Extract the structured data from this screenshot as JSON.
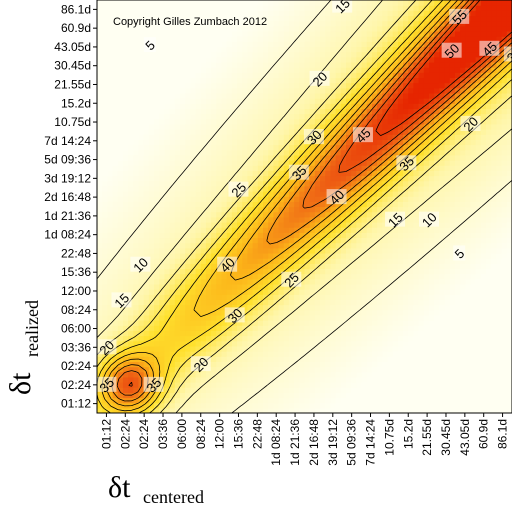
{
  "chart_data": {
    "type": "heatmap",
    "title": "",
    "copyright": "Copyright Gilles Zumbach 2012",
    "xlabel": {
      "symbol": "δt",
      "subscript": "centered"
    },
    "ylabel": {
      "symbol": "δt",
      "subscript": "realized"
    },
    "x_ticks": [
      "01:12",
      "02:24",
      "02:24",
      "03:36",
      "06:00",
      "08:24",
      "12:00",
      "15:36",
      "22:48",
      "1d 08:24",
      "1d 21:36",
      "2d 16:48",
      "3d 19:12",
      "5d 09:36",
      "7d 14:24",
      "10.75d",
      "15.2d",
      "21.55d",
      "30.45d",
      "43.05d",
      "60.9d",
      "86.1d"
    ],
    "y_ticks": [
      "01:12",
      "02:24",
      "02:24",
      "03:36",
      "06:00",
      "08:24",
      "12:00",
      "15:36",
      "22:48",
      "1d 08:24",
      "1d 21:36",
      "2d 16:48",
      "3d 19:12",
      "5d 09:36",
      "7d 14:24",
      "10.75d",
      "15.2d",
      "21.55d",
      "30.45d",
      "43.05d",
      "60.9d",
      "86.1d"
    ],
    "contour_levels": [
      5,
      10,
      15,
      20,
      25,
      30,
      35,
      40,
      45,
      50,
      55
    ],
    "contour_labels": [
      {
        "text": "5",
        "x": 2.3,
        "y": 19.1
      },
      {
        "text": "15",
        "x": 12.5,
        "y": 21.2
      },
      {
        "text": "20",
        "x": 11.3,
        "y": 17.3
      },
      {
        "text": "25",
        "x": 7.0,
        "y": 11.4
      },
      {
        "text": "30",
        "x": 11.0,
        "y": 14.2
      },
      {
        "text": "35",
        "x": 10.2,
        "y": 12.3
      },
      {
        "text": "45",
        "x": 13.6,
        "y": 14.3
      },
      {
        "text": "40",
        "x": 6.4,
        "y": 7.4
      },
      {
        "text": "40",
        "x": 12.2,
        "y": 11.0
      },
      {
        "text": "55",
        "x": 18.7,
        "y": 20.6
      },
      {
        "text": "50",
        "x": 18.3,
        "y": 18.8
      },
      {
        "text": "45",
        "x": 20.3,
        "y": 18.9
      },
      {
        "text": "35",
        "x": 21.6,
        "y": 18.6
      },
      {
        "text": "35",
        "x": 15.9,
        "y": 12.8
      },
      {
        "text": "20",
        "x": 19.3,
        "y": 14.9
      },
      {
        "text": "15",
        "x": 15.3,
        "y": 9.8
      },
      {
        "text": "10",
        "x": 17.1,
        "y": 9.8
      },
      {
        "text": "5",
        "x": 18.7,
        "y": 8.0
      },
      {
        "text": "25",
        "x": 9.8,
        "y": 6.6
      },
      {
        "text": "30",
        "x": 6.8,
        "y": 4.7
      },
      {
        "text": "20",
        "x": 5.0,
        "y": 2.1
      },
      {
        "text": "35",
        "x": 2.5,
        "y": 1.0
      },
      {
        "text": "10",
        "x": 1.8,
        "y": 7.4
      },
      {
        "text": "15",
        "x": 0.8,
        "y": 5.5
      },
      {
        "text": "20",
        "x": 0.0,
        "y": 3.0
      },
      {
        "text": "35",
        "x": 0.0,
        "y": 1.0
      }
    ],
    "colors": {
      "low": "#fffff2",
      "mid": "#ffdc1e",
      "high": "#e83a10",
      "peak": "#e62500",
      "line": "#000000"
    },
    "grid": false,
    "legend": "none"
  }
}
